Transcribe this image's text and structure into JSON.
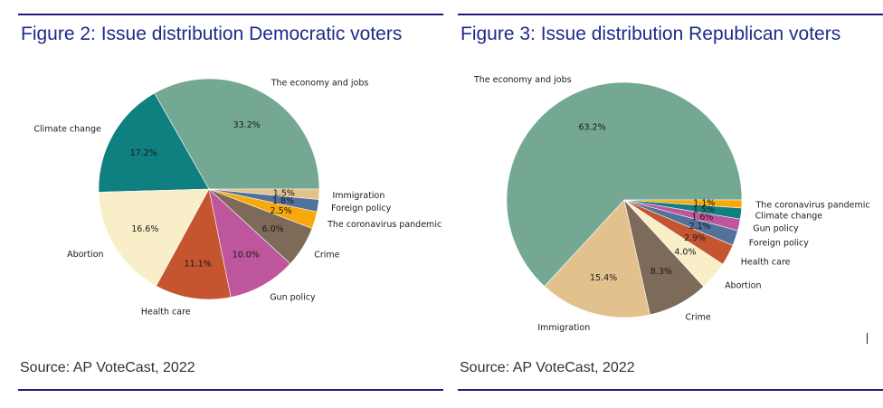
{
  "chart_data": [
    {
      "type": "pie",
      "title": "Figure 2: Issue distribution Democratic voters",
      "source": "Source: AP VoteCast, 2022",
      "slices": [
        {
          "label": "The economy and jobs",
          "value": 33.2,
          "pct_label": "33.2%",
          "color": "#75a893"
        },
        {
          "label": "Climate change",
          "value": 17.2,
          "pct_label": "17.2%",
          "color": "#0f7f7f"
        },
        {
          "label": "Abortion",
          "value": 16.6,
          "pct_label": "16.6%",
          "color": "#f8efc8"
        },
        {
          "label": "Health care",
          "value": 11.1,
          "pct_label": "11.1%",
          "color": "#c4552f"
        },
        {
          "label": "Gun policy",
          "value": 10.0,
          "pct_label": "10.0%",
          "color": "#bd569d"
        },
        {
          "label": "Crime",
          "value": 6.0,
          "pct_label": "6.0%",
          "color": "#7e6a58"
        },
        {
          "label": "The coronavirus pandemic",
          "value": 2.5,
          "pct_label": "2.5%",
          "color": "#f7a80a"
        },
        {
          "label": "Foreign policy",
          "value": 1.8,
          "pct_label": "1.8%",
          "color": "#52719b"
        },
        {
          "label": "Immigration",
          "value": 1.5,
          "pct_label": "1.5%",
          "color": "#e2c18c"
        }
      ]
    },
    {
      "type": "pie",
      "title": "Figure 3: Issue distribution Republican voters",
      "source": "Source: AP VoteCast, 2022",
      "slices": [
        {
          "label": "The economy and jobs",
          "value": 63.2,
          "pct_label": "63.2%",
          "color": "#75a893"
        },
        {
          "label": "Immigration",
          "value": 15.4,
          "pct_label": "15.4%",
          "color": "#e2c18c"
        },
        {
          "label": "Crime",
          "value": 8.3,
          "pct_label": "8.3%",
          "color": "#7e6a58"
        },
        {
          "label": "Abortion",
          "value": 4.0,
          "pct_label": "4.0%",
          "color": "#f8efc8"
        },
        {
          "label": "Health care",
          "value": 2.9,
          "pct_label": "2.9%",
          "color": "#c4552f"
        },
        {
          "label": "Foreign policy",
          "value": 2.1,
          "pct_label": "2.1%",
          "color": "#52719b"
        },
        {
          "label": "Gun policy",
          "value": 1.6,
          "pct_label": "1.6%",
          "color": "#bd569d"
        },
        {
          "label": "Climate change",
          "value": 1.5,
          "pct_label": "1.5%",
          "color": "#0f7f7f"
        },
        {
          "label": "The coronavirus pandemic",
          "value": 1.1,
          "pct_label": "1.1%",
          "color": "#f7a80a"
        }
      ]
    }
  ]
}
